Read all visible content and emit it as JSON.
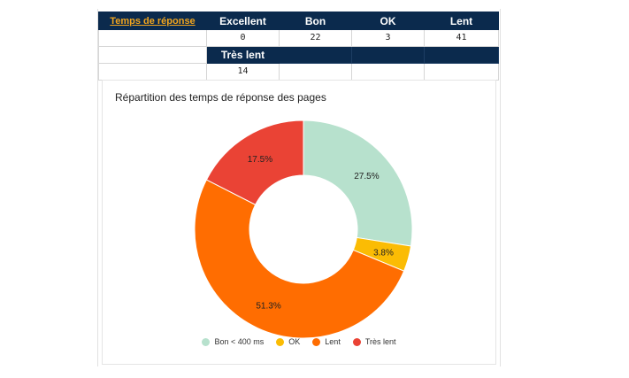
{
  "table": {
    "link_label": "Temps de réponse",
    "headers_row1": [
      "Excellent",
      "Bon",
      "OK",
      "Lent"
    ],
    "values_row1": [
      "0",
      "22",
      "3",
      "41"
    ],
    "header_row2": "Très lent",
    "value_row2": "14"
  },
  "chart_data": {
    "type": "pie",
    "title": "Répartition des temps de réponse des pages",
    "donut": true,
    "slices": [
      {
        "label": "Bon < 400 ms",
        "value": 27.5,
        "color": "#b7e1cd",
        "data_label": "27.5%"
      },
      {
        "label": "OK",
        "value": 3.8,
        "color": "#fbbc04",
        "data_label": "3.8%"
      },
      {
        "label": "Lent",
        "value": 51.3,
        "color": "#ff6d01",
        "data_label": "51.3%"
      },
      {
        "label": "Très lent",
        "value": 17.5,
        "color": "#ea4335",
        "data_label": "17.5%"
      }
    ],
    "legend_position": "bottom"
  }
}
